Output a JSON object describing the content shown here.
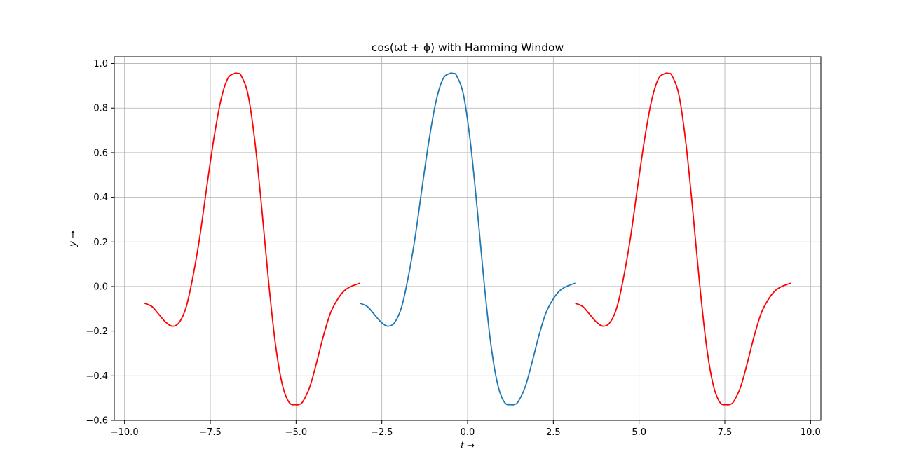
{
  "chart_data": {
    "type": "line",
    "title": "cos(ωt + ϕ) with Hamming Window",
    "xlabel": "t →",
    "ylabel": "y →",
    "xlim": [
      -10.3,
      10.3
    ],
    "ylim": [
      -0.6,
      1.03
    ],
    "grid": true,
    "x_ticks": [
      -10.0,
      -7.5,
      -5.0,
      -2.5,
      0.0,
      2.5,
      5.0,
      7.5,
      10.0
    ],
    "x_tick_labels": [
      "−10.0",
      "−7.5",
      "−5.0",
      "−2.5",
      "0.0",
      "2.5",
      "5.0",
      "7.5",
      "10.0"
    ],
    "y_ticks": [
      -0.6,
      -0.4,
      -0.2,
      0.0,
      0.2,
      0.4,
      0.6,
      0.8,
      1.0
    ],
    "y_tick_labels": [
      "−0.6",
      "−0.4",
      "−0.2",
      "0.0",
      "0.2",
      "0.4",
      "0.6",
      "0.8",
      "1.0"
    ],
    "series": [
      {
        "color": "#ff0000",
        "x": [
          -9.42,
          -9.2,
          -9.0,
          -8.8,
          -8.6,
          -8.4,
          -8.2,
          -8.0,
          -7.8,
          -7.6,
          -7.4,
          -7.2,
          -7.0,
          -6.8,
          -6.7,
          -6.6,
          -6.4,
          -6.2,
          -6.0,
          -5.8,
          -5.6,
          -5.4,
          -5.2,
          -5.0,
          -4.9,
          -4.8,
          -4.6,
          -4.4,
          -4.2,
          -4.0,
          -3.8,
          -3.6,
          -3.4,
          -3.14
        ],
        "y": [
          -0.075,
          -0.09,
          -0.125,
          -0.16,
          -0.178,
          -0.16,
          -0.09,
          0.05,
          0.23,
          0.45,
          0.66,
          0.83,
          0.93,
          0.955,
          0.955,
          0.945,
          0.86,
          0.65,
          0.35,
          0.02,
          -0.26,
          -0.44,
          -0.52,
          -0.53,
          -0.528,
          -0.515,
          -0.45,
          -0.34,
          -0.22,
          -0.12,
          -0.06,
          -0.02,
          0.0,
          0.015
        ]
      },
      {
        "color": "#1f77b4",
        "x": [
          -3.14,
          -2.92,
          -2.72,
          -2.52,
          -2.32,
          -2.12,
          -1.92,
          -1.72,
          -1.52,
          -1.32,
          -1.12,
          -0.92,
          -0.72,
          -0.52,
          -0.42,
          -0.32,
          -0.12,
          0.08,
          0.28,
          0.48,
          0.68,
          0.88,
          1.08,
          1.28,
          1.38,
          1.48,
          1.68,
          1.88,
          2.08,
          2.28,
          2.48,
          2.68,
          2.88,
          3.14
        ],
        "y": [
          -0.075,
          -0.09,
          -0.125,
          -0.16,
          -0.178,
          -0.16,
          -0.09,
          0.05,
          0.23,
          0.45,
          0.66,
          0.83,
          0.93,
          0.955,
          0.955,
          0.945,
          0.86,
          0.65,
          0.35,
          0.02,
          -0.26,
          -0.44,
          -0.52,
          -0.53,
          -0.528,
          -0.515,
          -0.45,
          -0.34,
          -0.22,
          -0.12,
          -0.06,
          -0.02,
          0.0,
          0.015
        ]
      },
      {
        "color": "#ff0000",
        "x": [
          3.14,
          3.36,
          3.56,
          3.76,
          3.96,
          4.16,
          4.36,
          4.56,
          4.76,
          4.96,
          5.16,
          5.36,
          5.56,
          5.76,
          5.86,
          5.96,
          6.16,
          6.36,
          6.56,
          6.76,
          6.96,
          7.16,
          7.36,
          7.56,
          7.66,
          7.76,
          7.96,
          8.16,
          8.36,
          8.56,
          8.76,
          8.96,
          9.16,
          9.42
        ],
        "y": [
          -0.075,
          -0.09,
          -0.125,
          -0.16,
          -0.178,
          -0.16,
          -0.09,
          0.05,
          0.23,
          0.45,
          0.66,
          0.83,
          0.93,
          0.955,
          0.955,
          0.945,
          0.86,
          0.65,
          0.35,
          0.02,
          -0.26,
          -0.44,
          -0.52,
          -0.53,
          -0.528,
          -0.515,
          -0.45,
          -0.34,
          -0.22,
          -0.12,
          -0.06,
          -0.02,
          0.0,
          0.015
        ]
      }
    ]
  }
}
